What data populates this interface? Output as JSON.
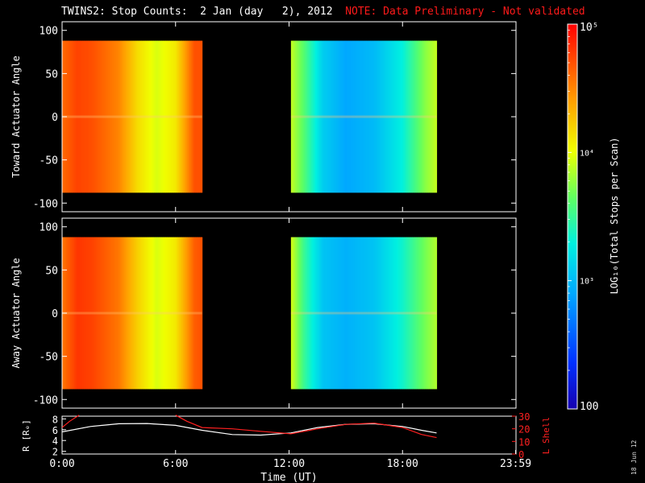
{
  "header": {
    "title": "TWINS2: Stop Counts:  2 Jan (day   2), 2012",
    "note": "NOTE: Data Preliminary - Not validated"
  },
  "datestamp": "18 Jun 12",
  "chart_data": [
    {
      "type": "heatmap",
      "name": "toward-panel",
      "ylabel": "Toward Actuator Angle",
      "ylim": [
        -110,
        110
      ],
      "yticks": [
        "100",
        "50",
        "0",
        "-50",
        "-100"
      ],
      "xlim_hours": [
        0,
        24
      ],
      "data_intervals_hours": [
        [
          0.0,
          7.4
        ],
        [
          12.1,
          19.8
        ]
      ],
      "angle_range": [
        -88,
        88
      ],
      "color_profile_log10": [
        {
          "t": 0.0,
          "v": 4.6
        },
        {
          "t": 0.8,
          "v": 4.75
        },
        {
          "t": 1.6,
          "v": 4.7
        },
        {
          "t": 3.0,
          "v": 4.5
        },
        {
          "t": 4.0,
          "v": 4.15
        },
        {
          "t": 5.0,
          "v": 3.95
        },
        {
          "t": 6.0,
          "v": 4.1
        },
        {
          "t": 7.0,
          "v": 4.7
        },
        {
          "t": 7.4,
          "v": 4.7
        },
        {
          "t": 12.1,
          "v": 3.9
        },
        {
          "t": 12.8,
          "v": 3.6
        },
        {
          "t": 13.8,
          "v": 3.1
        },
        {
          "t": 15.0,
          "v": 2.9
        },
        {
          "t": 16.5,
          "v": 3.0
        },
        {
          "t": 18.0,
          "v": 3.3
        },
        {
          "t": 19.2,
          "v": 3.75
        },
        {
          "t": 19.8,
          "v": 3.9
        }
      ]
    },
    {
      "type": "heatmap",
      "name": "away-panel",
      "ylabel": "Away Actuator Angle",
      "ylim": [
        -110,
        110
      ],
      "yticks": [
        "100",
        "50",
        "0",
        "-50",
        "-100"
      ],
      "xlim_hours": [
        0,
        24
      ],
      "data_intervals_hours": [
        [
          0.0,
          7.4
        ],
        [
          12.1,
          19.8
        ]
      ],
      "angle_range": [
        -88,
        88
      ],
      "color_profile_log10": [
        {
          "t": 0.0,
          "v": 4.55
        },
        {
          "t": 0.8,
          "v": 4.8
        },
        {
          "t": 1.6,
          "v": 4.75
        },
        {
          "t": 3.0,
          "v": 4.55
        },
        {
          "t": 4.0,
          "v": 4.2
        },
        {
          "t": 5.0,
          "v": 3.95
        },
        {
          "t": 6.0,
          "v": 4.1
        },
        {
          "t": 7.0,
          "v": 4.65
        },
        {
          "t": 7.4,
          "v": 4.7
        },
        {
          "t": 12.1,
          "v": 3.95
        },
        {
          "t": 12.8,
          "v": 3.5
        },
        {
          "t": 13.8,
          "v": 3.05
        },
        {
          "t": 15.0,
          "v": 2.95
        },
        {
          "t": 16.5,
          "v": 3.05
        },
        {
          "t": 18.0,
          "v": 3.35
        },
        {
          "t": 19.2,
          "v": 3.7
        },
        {
          "t": 19.8,
          "v": 3.85
        }
      ]
    },
    {
      "type": "line",
      "name": "orbit-panel",
      "ylabel": "R [Rₑ]",
      "y2label": "L Shell",
      "ylim": [
        1.5,
        8.5
      ],
      "y2lim": [
        0,
        30
      ],
      "yticks": [
        "8",
        "6",
        "4",
        "2"
      ],
      "y2ticks": [
        "30",
        "20",
        "10",
        "0"
      ],
      "xlabel": "Time (UT)",
      "xticks": [
        "0:00",
        "6:00",
        "12:00",
        "18:00",
        "23:59"
      ],
      "series": [
        {
          "color": "#ffffff",
          "axis": "left",
          "x_hours": [
            0,
            1.5,
            3,
            4.5,
            6,
            7.4,
            9,
            10.5,
            12.1,
            13.5,
            15,
            16.5,
            18,
            19,
            19.8
          ],
          "values": [
            5.6,
            6.6,
            7.1,
            7.15,
            6.8,
            5.9,
            5.1,
            5.0,
            5.4,
            6.4,
            7.0,
            7.1,
            6.6,
            5.9,
            5.4
          ]
        },
        {
          "color": "#ff2020",
          "axis": "right",
          "segments": [
            {
              "x_hours": [
                0,
                0.4,
                0.9
              ],
              "values": [
                21,
                26,
                32
              ]
            },
            {
              "x_hours": [
                6.0,
                6.6,
                7.4,
                9,
                10.5,
                12.1,
                13.5,
                15,
                16.5,
                18,
                19,
                19.8
              ],
              "values": [
                32,
                26,
                21,
                20,
                18,
                16,
                20,
                23.5,
                24.5,
                21,
                15.5,
                13
              ]
            }
          ]
        }
      ]
    }
  ],
  "colorbar": {
    "label": "LOG₁₀(Total Stops per Scan)",
    "scale": "log",
    "range_log10": [
      2,
      5
    ],
    "tick_labels": [
      "10⁵",
      "10⁴",
      "10³",
      "100"
    ],
    "tick_values_log10": [
      5,
      4,
      3,
      2
    ]
  }
}
